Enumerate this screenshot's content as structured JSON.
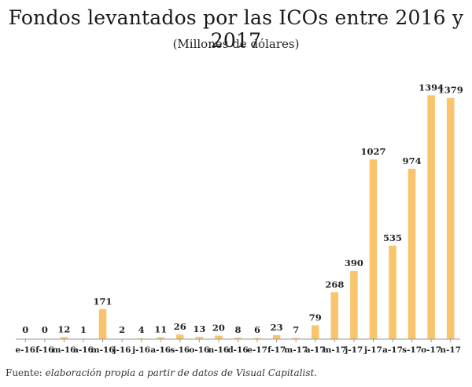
{
  "chart_data": {
    "type": "bar",
    "title": "Fondos levantados por las ICOs entre 2016 y 2017",
    "subtitle": "(Millones de dólares)",
    "categories": [
      "e-16",
      "f-16",
      "m-16",
      "a-16",
      "m-16",
      "j-16",
      "j-16",
      "a-16",
      "s-16",
      "o-16",
      "n-16",
      "d-16",
      "e-17",
      "f-17",
      "m-17",
      "a-17",
      "m-17",
      "j-17",
      "j-17",
      "a-17",
      "s-17",
      "o-17",
      "n-17"
    ],
    "values": [
      0,
      0,
      12,
      1,
      171,
      2,
      4,
      11,
      26,
      13,
      20,
      8,
      6,
      23,
      7,
      79,
      268,
      390,
      1027,
      535,
      974,
      1394,
      1379
    ],
    "bar_color": "#F9C46B",
    "axis_color": "#9a9a9a",
    "ylim": [
      0,
      1400
    ],
    "grid": false
  },
  "source": {
    "prefix": "Fuente: ",
    "text": "elaboración propia a partir de datos de Visual Capitalist."
  }
}
